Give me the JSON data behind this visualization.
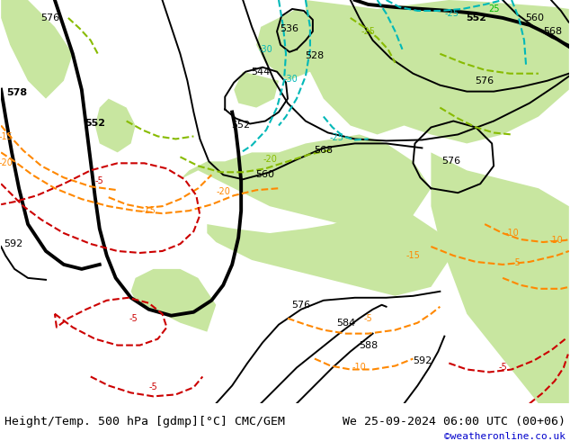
{
  "title_left": "Height/Temp. 500 hPa [gdmp][°C] CMC/GEM",
  "title_right": "We 25-09-2024 06:00 UTC (00+06)",
  "credit": "©weatheronline.co.uk",
  "bg_gray": "#c8c8c8",
  "land_green": "#c8e6a0",
  "land_green2": "#b8d890",
  "sea_gray": "#c8c8c8",
  "black": "#000000",
  "teal": "#00b8b8",
  "orange": "#ff8800",
  "red": "#cc0000",
  "green_dashed": "#88bb00",
  "credit_color": "#0000cc",
  "title_fontsize": 9.5,
  "credit_fontsize": 8,
  "figsize": [
    6.34,
    4.9
  ],
  "dpi": 100
}
